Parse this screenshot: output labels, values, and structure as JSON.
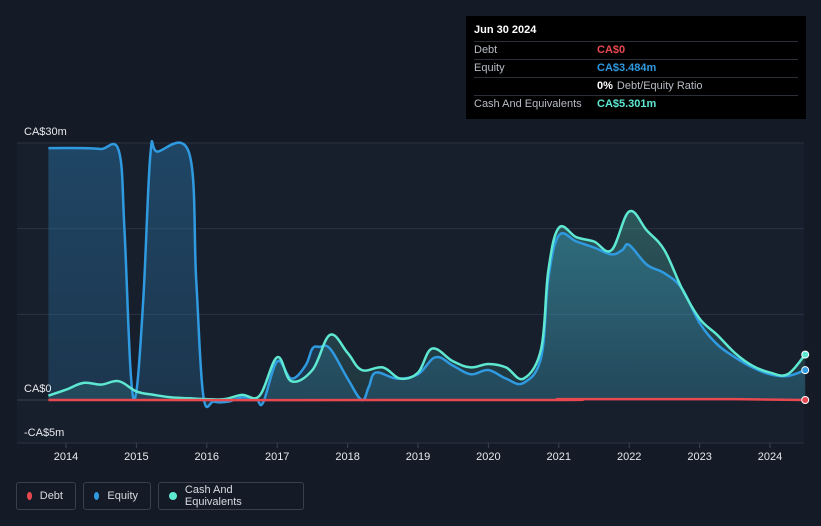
{
  "tooltip": {
    "date": "Jun 30 2024",
    "rows": [
      {
        "label": "Debt",
        "value": "CA$0",
        "color": "#e8484f"
      },
      {
        "label": "Equity",
        "value": "CA$3.484m",
        "color": "#2f9ae0"
      },
      {
        "label": "",
        "value": "0%",
        "extra": "Debt/Equity Ratio",
        "color": "#ffffff"
      },
      {
        "label": "Cash And Equivalents",
        "value": "CA$5.301m",
        "color": "#5ee8d2"
      }
    ]
  },
  "legend": [
    {
      "label": "Debt",
      "color": "#e8484f"
    },
    {
      "label": "Equity",
      "color": "#2f9ae0"
    },
    {
      "label": "Cash And Equivalents",
      "color": "#5ee8d2"
    }
  ],
  "chart_data": {
    "type": "area",
    "y_tick_labels": [
      "CA$30m",
      "CA$0",
      "-CA$5m"
    ],
    "x_tick_labels": [
      "2014",
      "2015",
      "2016",
      "2017",
      "2018",
      "2019",
      "2020",
      "2021",
      "2022",
      "2023",
      "2024"
    ],
    "ylim": [
      -5,
      30
    ],
    "unit": "CA$m",
    "grid": true,
    "legend_position": "bottom-left",
    "series": [
      {
        "name": "Equity",
        "color": "#2f9ae0",
        "points": [
          [
            2013.75,
            29.4
          ],
          [
            2014.25,
            29.4
          ],
          [
            2014.5,
            29.3
          ],
          [
            2014.75,
            29.1
          ],
          [
            2014.83,
            20
          ],
          [
            2014.92,
            3
          ],
          [
            2015.0,
            1.0
          ],
          [
            2015.1,
            12
          ],
          [
            2015.2,
            28.8
          ],
          [
            2015.3,
            29.0
          ],
          [
            2015.75,
            28.8
          ],
          [
            2015.85,
            14
          ],
          [
            2015.95,
            0.5
          ],
          [
            2016.1,
            -0.2
          ],
          [
            2016.3,
            -0.2
          ],
          [
            2016.5,
            0.3
          ],
          [
            2016.7,
            0.1
          ],
          [
            2016.8,
            -0.3
          ],
          [
            2017.0,
            4.5
          ],
          [
            2017.2,
            2.5
          ],
          [
            2017.4,
            4.0
          ],
          [
            2017.5,
            6.0
          ],
          [
            2017.6,
            6.2
          ],
          [
            2017.75,
            6.0
          ],
          [
            2018.0,
            2.5
          ],
          [
            2018.2,
            0.0
          ],
          [
            2018.3,
            1.5
          ],
          [
            2018.4,
            3.2
          ],
          [
            2018.7,
            2.5
          ],
          [
            2019.0,
            3.0
          ],
          [
            2019.25,
            5.0
          ],
          [
            2019.5,
            4.0
          ],
          [
            2019.75,
            3.0
          ],
          [
            2020.0,
            3.5
          ],
          [
            2020.25,
            2.5
          ],
          [
            2020.5,
            2.0
          ],
          [
            2020.75,
            5.0
          ],
          [
            2020.85,
            14
          ],
          [
            2021.0,
            19.2
          ],
          [
            2021.25,
            18.5
          ],
          [
            2021.5,
            17.8
          ],
          [
            2021.75,
            17.0
          ],
          [
            2021.9,
            17.5
          ],
          [
            2022.0,
            18.1
          ],
          [
            2022.25,
            15.8
          ],
          [
            2022.5,
            14.8
          ],
          [
            2022.75,
            13.0
          ],
          [
            2023.0,
            9.0
          ],
          [
            2023.25,
            6.5
          ],
          [
            2023.5,
            5.0
          ],
          [
            2023.75,
            3.8
          ],
          [
            2024.0,
            3.0
          ],
          [
            2024.25,
            2.8
          ],
          [
            2024.5,
            3.484
          ]
        ]
      },
      {
        "name": "Cash And Equivalents",
        "color": "#5ee8d2",
        "points": [
          [
            2013.75,
            0.5
          ],
          [
            2014.0,
            1.2
          ],
          [
            2014.25,
            2.0
          ],
          [
            2014.5,
            1.8
          ],
          [
            2014.75,
            2.2
          ],
          [
            2015.0,
            1.0
          ],
          [
            2015.25,
            0.6
          ],
          [
            2015.5,
            0.3
          ],
          [
            2015.75,
            0.2
          ],
          [
            2016.0,
            0.1
          ],
          [
            2016.25,
            0.1
          ],
          [
            2016.5,
            0.6
          ],
          [
            2016.75,
            0.5
          ],
          [
            2017.0,
            5.0
          ],
          [
            2017.2,
            2.2
          ],
          [
            2017.5,
            3.5
          ],
          [
            2017.75,
            7.6
          ],
          [
            2018.0,
            5.5
          ],
          [
            2018.2,
            3.5
          ],
          [
            2018.5,
            3.8
          ],
          [
            2018.75,
            2.5
          ],
          [
            2019.0,
            3.2
          ],
          [
            2019.2,
            6.0
          ],
          [
            2019.5,
            4.5
          ],
          [
            2019.75,
            3.8
          ],
          [
            2020.0,
            4.2
          ],
          [
            2020.25,
            3.8
          ],
          [
            2020.5,
            2.5
          ],
          [
            2020.75,
            6.0
          ],
          [
            2020.85,
            15
          ],
          [
            2021.0,
            20.1
          ],
          [
            2021.25,
            19.0
          ],
          [
            2021.5,
            18.5
          ],
          [
            2021.75,
            17.5
          ],
          [
            2022.0,
            22.0
          ],
          [
            2022.25,
            19.8
          ],
          [
            2022.5,
            17.5
          ],
          [
            2022.75,
            13.0
          ],
          [
            2023.0,
            9.5
          ],
          [
            2023.25,
            7.6
          ],
          [
            2023.5,
            5.5
          ],
          [
            2023.75,
            4.0
          ],
          [
            2024.0,
            3.2
          ],
          [
            2024.25,
            3.0
          ],
          [
            2024.5,
            5.301
          ]
        ]
      },
      {
        "name": "Debt",
        "color": "#e8484f",
        "points": [
          [
            2013.75,
            0.0
          ],
          [
            2020.75,
            0.0
          ],
          [
            2021.0,
            0.1
          ],
          [
            2022.0,
            0.1
          ],
          [
            2023.5,
            0.1
          ],
          [
            2024.5,
            0.0
          ]
        ]
      }
    ]
  }
}
